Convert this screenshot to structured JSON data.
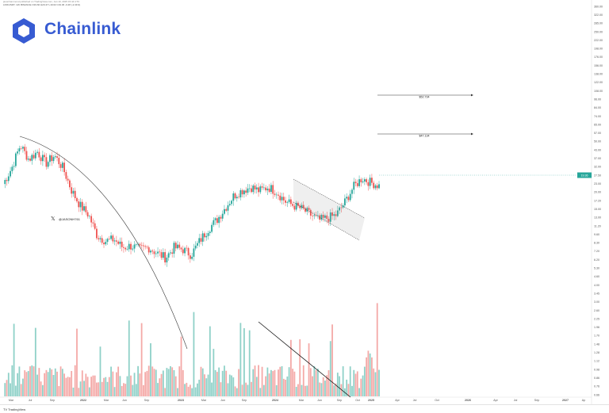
{
  "header": {
    "publisher_line": "jasonhammond published on TradingView.com, Jan 10, 2025 15:44 UTC",
    "symbol_line": "LINKUSDT, 1W, BINANCE O19.60 H20.47 L19.02 C19.36 -0.48 (-2.41%)"
  },
  "logo": {
    "text": "Chainlink",
    "icon": "chainlink-hexagon-icon",
    "color": "#375bd2"
  },
  "social": {
    "icon": "x-logo-icon",
    "glyph": "𝕏",
    "handle": "@JASONH761"
  },
  "footer": {
    "brand": "TradingView",
    "icon": "tradingview-logo-icon"
  },
  "chart_data": {
    "type": "candlestick",
    "colors": {
      "up": "#26a69a",
      "down": "#ef5350",
      "up_volume": "#8fd1c8",
      "down_volume": "#f4a9a7",
      "current_price": "#26a69a"
    },
    "y_scale": "log",
    "ylim": [
      0.6,
      380
    ],
    "y_ticks": [
      "360.00",
      "322.00",
      "285.00",
      "250.00",
      "222.00",
      "198.00",
      "176.00",
      "156.00",
      "138.00",
      "122.00",
      "108.00",
      "96.00",
      "84.00",
      "74.00",
      "65.00",
      "57.00",
      "50.00",
      "43.00",
      "37.00",
      "32.00",
      "27.50",
      "23.00",
      "20.00",
      "17.20",
      "15.00",
      "13.00",
      "11.20",
      "9.60",
      "8.30",
      "7.20",
      "6.20",
      "5.30",
      "4.60",
      "4.00",
      "3.45",
      "3.00",
      "2.60",
      "2.25",
      "1.96",
      "1.70",
      "1.48",
      "1.28",
      "1.12",
      "0.98",
      "0.86",
      "0.76",
      "0.66"
    ],
    "x_ticks": [
      "Mar",
      "Jul",
      "Sep",
      "2022",
      "Mar",
      "Jun",
      "Sep",
      "2023",
      "Mar",
      "Jun",
      "Sep",
      "2024",
      "Mar",
      "Jun",
      "Sep",
      "Oct",
      "2025",
      "Apr",
      "Jul",
      "Oct",
      "2026",
      "Apr",
      "Jul",
      "Sep",
      "2027",
      "Ap"
    ],
    "price_path": [
      20,
      26,
      38,
      30,
      34,
      28,
      32,
      26,
      18,
      14,
      12,
      8.5,
      7.8,
      8,
      7,
      7.2,
      6.8,
      7,
      6.4,
      5.9,
      7,
      6.8,
      6.2,
      7.8,
      9.5,
      11,
      13.5,
      16.5,
      18,
      19,
      17.8,
      19,
      17.6,
      15,
      14,
      13.2,
      12,
      11,
      11.4,
      12,
      14.8,
      19,
      22,
      20.5,
      19.4
    ],
    "current_price": {
      "value": "19.36",
      "label": "19.36"
    },
    "targets": [
      {
        "label": "$52.734",
        "value": 52.734
      },
      {
        "label": "$47.134",
        "value": 47.134
      }
    ],
    "annotations": [
      "long-term downtrend arc",
      "falling wedge/flag",
      "volume descending trendline"
    ],
    "legend": "none",
    "grid": false
  }
}
